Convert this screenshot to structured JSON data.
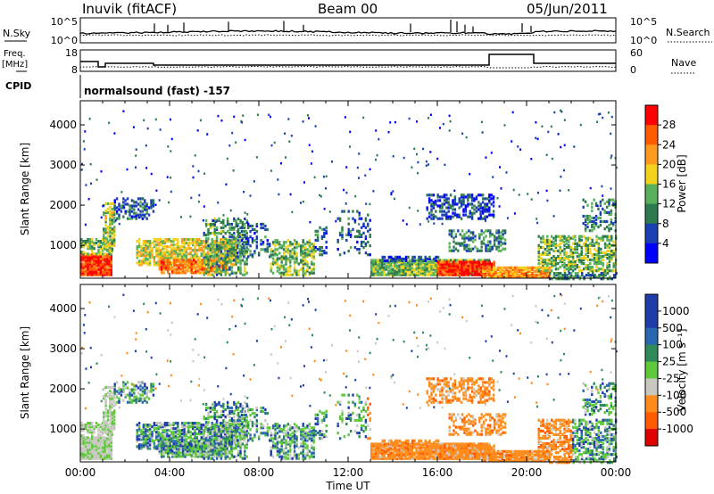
{
  "header": {
    "station": "Inuvik (fitACF)",
    "beam": "Beam 00",
    "date": "05/Jun/2011"
  },
  "top_panels": {
    "nsky_label": "N.Sky",
    "nsearch_label": "N.Search",
    "nsky_ticks": [
      "10^5",
      "10^0"
    ],
    "nsearch_ticks": [
      "10^5",
      "10^0"
    ],
    "freq_label_1": "Freq.",
    "freq_label_2": "[MHz]",
    "freq_ticks": [
      "18",
      "8"
    ],
    "nave_label": "Nave",
    "nave_ticks": [
      "60",
      "0"
    ],
    "cpid_label": "CPID",
    "cpid_text": "normalsound (fast) -157"
  },
  "colors": {
    "power_scale": [
      "#0000ff",
      "#1a3fb3",
      "#2d7a4e",
      "#58b05a",
      "#f2d21b",
      "#ff9a1f",
      "#ff5a00",
      "#ff0000"
    ],
    "velocity_scale": [
      "#1f3ca8",
      "#2b67b0",
      "#2f8a5a",
      "#5ec93a",
      "#c8c8c0",
      "#ff8c1a",
      "#ff5a00",
      "#e00000"
    ]
  },
  "chart_data": [
    {
      "type": "heatmap",
      "ylabel": "Slant Range [km]",
      "y_ticks": [
        "1000",
        "2000",
        "3000",
        "4000"
      ],
      "colorbar_label": "Power [dB]",
      "colorbar_ticks": [
        "4",
        "8",
        "12",
        "16",
        "20",
        "24",
        "28"
      ],
      "ylim": [
        180,
        4600
      ]
    },
    {
      "type": "heatmap",
      "ylabel": "Slant Range [km]",
      "y_ticks": [
        "1000",
        "2000",
        "3000",
        "4000"
      ],
      "colorbar_label": "Velocity [m s⁻¹]",
      "colorbar_ticks": [
        "1000",
        "500",
        "100",
        "25",
        "-25",
        "-100",
        "-500",
        "-1000"
      ],
      "xlabel": "Time UT",
      "x_ticks": [
        "00:00",
        "04:00",
        "08:00",
        "12:00",
        "16:00",
        "20:00",
        "00:00"
      ],
      "ylim": [
        180,
        4600
      ]
    }
  ]
}
